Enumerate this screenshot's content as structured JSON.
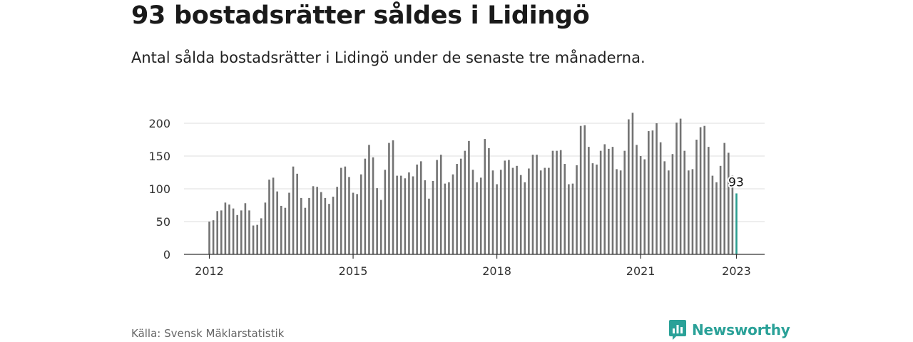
{
  "header": {
    "title": "93 bostadsrätter såldes i Lidingö",
    "subtitle": "Antal sålda bostadsrätter i Lidingö under de senaste tre månaderna."
  },
  "footer": {
    "source": "Källa: Svensk Mäklarstatistik",
    "brand": "Newsworthy"
  },
  "colors": {
    "bar": "#737373",
    "highlight": "#2a9d8f",
    "brand": "#2aa198",
    "grid": "#dddddd",
    "axis": "#333333"
  },
  "chart_data": {
    "type": "bar",
    "title": "",
    "xlabel": "",
    "ylabel": "",
    "ylim": [
      0,
      230
    ],
    "grid": true,
    "y_ticks": [
      0,
      50,
      100,
      150,
      200
    ],
    "x_ticks": [
      "2012",
      "2015",
      "2018",
      "2021",
      "2023"
    ],
    "x_range": [
      "2012-01",
      "2023-01"
    ],
    "highlight_label": "93",
    "series": [
      {
        "x": [
          "2012-01",
          "2012-02",
          "2012-03",
          "2012-04",
          "2012-05",
          "2012-06",
          "2012-07",
          "2012-08",
          "2012-09",
          "2012-10",
          "2012-11",
          "2012-12",
          "2013-01",
          "2013-02",
          "2013-03",
          "2013-04",
          "2013-05",
          "2013-06",
          "2013-07",
          "2013-08",
          "2013-09",
          "2013-10",
          "2013-11",
          "2013-12",
          "2014-01",
          "2014-02",
          "2014-03",
          "2014-04",
          "2014-05",
          "2014-06",
          "2014-07",
          "2014-08",
          "2014-09",
          "2014-10",
          "2014-11",
          "2014-12",
          "2015-01",
          "2015-02",
          "2015-03",
          "2015-04",
          "2015-05",
          "2015-06",
          "2015-07",
          "2015-08",
          "2015-09",
          "2015-10",
          "2015-11",
          "2015-12",
          "2016-01",
          "2016-02",
          "2016-03",
          "2016-04",
          "2016-05",
          "2016-06",
          "2016-07",
          "2016-08",
          "2016-09",
          "2016-10",
          "2016-11",
          "2016-12",
          "2017-01",
          "2017-02",
          "2017-03",
          "2017-04",
          "2017-05",
          "2017-06",
          "2017-07",
          "2017-08",
          "2017-09",
          "2017-10",
          "2017-11",
          "2017-12",
          "2018-01",
          "2018-02",
          "2018-03",
          "2018-04",
          "2018-05",
          "2018-06",
          "2018-07",
          "2018-08",
          "2018-09",
          "2018-10",
          "2018-11",
          "2018-12",
          "2019-01",
          "2019-02",
          "2019-03",
          "2019-04",
          "2019-05",
          "2019-06",
          "2019-07",
          "2019-08",
          "2019-09",
          "2019-10",
          "2019-11",
          "2019-12",
          "2020-01",
          "2020-02",
          "2020-03",
          "2020-04",
          "2020-05",
          "2020-06",
          "2020-07",
          "2020-08",
          "2020-09",
          "2020-10",
          "2020-11",
          "2020-12",
          "2021-01",
          "2021-02",
          "2021-03",
          "2021-04",
          "2021-05",
          "2021-06",
          "2021-07",
          "2021-08",
          "2021-09",
          "2021-10",
          "2021-11",
          "2021-12",
          "2022-01",
          "2022-02",
          "2022-03",
          "2022-04",
          "2022-05",
          "2022-06",
          "2022-07",
          "2022-08",
          "2022-09",
          "2022-10",
          "2022-11",
          "2022-12",
          "2023-01"
        ],
        "values": [
          50,
          52,
          66,
          67,
          79,
          76,
          70,
          60,
          67,
          78,
          67,
          44,
          45,
          55,
          79,
          114,
          117,
          96,
          74,
          71,
          94,
          134,
          123,
          86,
          71,
          86,
          104,
          103,
          95,
          86,
          77,
          88,
          103,
          132,
          134,
          118,
          94,
          92,
          122,
          146,
          167,
          148,
          101,
          83,
          129,
          170,
          174,
          120,
          120,
          116,
          125,
          119,
          137,
          142,
          113,
          85,
          112,
          144,
          152,
          108,
          110,
          122,
          138,
          146,
          158,
          173,
          129,
          110,
          117,
          176,
          162,
          128,
          107,
          129,
          143,
          144,
          132,
          135,
          121,
          110,
          131,
          152,
          152,
          128,
          132,
          132,
          158,
          158,
          159,
          138,
          107,
          108,
          136,
          196,
          197,
          164,
          139,
          137,
          158,
          168,
          161,
          164,
          130,
          128,
          158,
          206,
          216,
          167,
          150,
          145,
          188,
          189,
          200,
          171,
          142,
          128,
          153,
          201,
          207,
          158,
          128,
          130,
          175,
          194,
          196,
          164,
          120,
          110,
          135,
          170,
          155,
          120,
          93
        ]
      }
    ]
  }
}
